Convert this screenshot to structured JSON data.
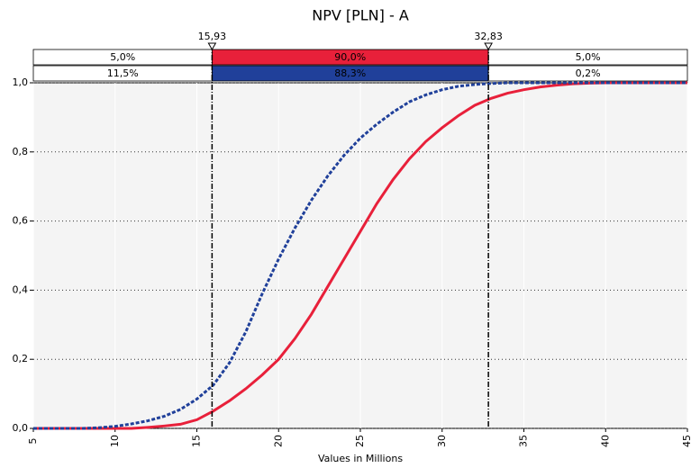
{
  "chart_data": {
    "type": "line",
    "title": "NPV [PLN] - A",
    "x_label": "Values in Millions",
    "x": [
      5,
      6,
      7,
      8,
      9,
      10,
      11,
      12,
      13,
      14,
      15,
      16,
      17,
      18,
      19,
      20,
      21,
      22,
      23,
      24,
      25,
      26,
      27,
      28,
      29,
      30,
      31,
      32,
      33,
      34,
      35,
      36,
      37,
      38,
      39,
      40,
      41,
      42,
      43,
      44,
      45
    ],
    "series": [
      {
        "color": "#e8203a",
        "dash": false,
        "values": [
          0,
          0,
          0,
          0,
          0,
          0,
          0,
          0.003,
          0.007,
          0.012,
          0.025,
          0.05,
          0.08,
          0.115,
          0.155,
          0.2,
          0.26,
          0.33,
          0.41,
          0.49,
          0.57,
          0.65,
          0.72,
          0.78,
          0.83,
          0.87,
          0.905,
          0.935,
          0.955,
          0.97,
          0.98,
          0.988,
          0.993,
          0.997,
          0.999,
          1,
          1,
          1,
          1,
          1,
          1
        ]
      },
      {
        "color": "#20409a",
        "dash": true,
        "values": [
          0,
          0,
          0,
          0,
          0.002,
          0.006,
          0.013,
          0.022,
          0.035,
          0.055,
          0.085,
          0.125,
          0.19,
          0.28,
          0.39,
          0.49,
          0.58,
          0.66,
          0.73,
          0.79,
          0.84,
          0.88,
          0.915,
          0.945,
          0.965,
          0.98,
          0.99,
          0.995,
          0.998,
          1,
          1,
          1,
          1,
          1,
          1,
          1,
          1,
          1,
          1,
          1,
          1
        ]
      }
    ],
    "delimiters": [
      {
        "value": 15.93,
        "label": "15,93"
      },
      {
        "value": 32.83,
        "label": "32,83"
      }
    ],
    "bands": [
      {
        "values": [
          5.0,
          90.0,
          5.0
        ],
        "value_labels": [
          "5,0%",
          "90,0%",
          "5,0%"
        ]
      },
      {
        "values": [
          11.5,
          88.3,
          0.2
        ],
        "value_labels": [
          "11,5%",
          "88,3%",
          "0,2%"
        ]
      }
    ],
    "xlim": [
      5,
      45
    ],
    "xticks": [
      5,
      10,
      15,
      20,
      25,
      30,
      35,
      40,
      45
    ],
    "ylim": [
      0,
      1
    ],
    "yticks": [
      {
        "value": 0,
        "label": "0,0"
      },
      {
        "value": 0.2,
        "label": "0,2"
      },
      {
        "value": 0.4,
        "label": "0,4"
      },
      {
        "value": 0.6,
        "label": "0,6"
      },
      {
        "value": 0.8,
        "label": "0,8"
      },
      {
        "value": 1,
        "label": "1,0"
      }
    ],
    "grid": true
  }
}
